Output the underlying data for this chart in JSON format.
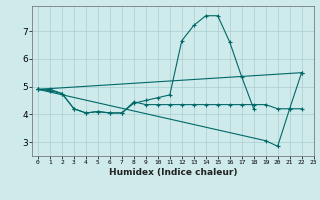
{
  "xlabel": "Humidex (Indice chaleur)",
  "bg_color": "#ceeaea",
  "line_color": "#006868",
  "grid_color": "#aacece",
  "xlim": [
    -0.5,
    23
  ],
  "ylim": [
    2.5,
    7.9
  ],
  "yticks": [
    3,
    4,
    5,
    6,
    7
  ],
  "xticks": [
    0,
    1,
    2,
    3,
    4,
    5,
    6,
    7,
    8,
    9,
    10,
    11,
    12,
    13,
    14,
    15,
    16,
    17,
    18,
    19,
    20,
    21,
    22,
    23
  ],
  "line1_x": [
    0,
    1,
    2,
    3,
    4,
    5,
    6,
    7,
    8,
    9,
    10,
    11,
    12,
    13,
    14,
    15,
    16,
    17,
    18
  ],
  "line1_y": [
    4.9,
    4.9,
    4.75,
    4.2,
    4.05,
    4.1,
    4.05,
    4.05,
    4.4,
    4.5,
    4.6,
    4.7,
    6.65,
    7.2,
    7.55,
    7.55,
    6.6,
    5.35,
    4.2
  ],
  "line2_x": [
    0,
    1,
    2,
    3,
    4,
    5,
    6,
    7,
    8,
    9,
    10,
    11,
    12,
    13,
    14,
    15,
    16,
    17,
    18,
    19,
    20,
    21,
    22
  ],
  "line2_y": [
    4.9,
    4.85,
    4.75,
    4.2,
    4.05,
    4.1,
    4.05,
    4.05,
    4.45,
    4.35,
    4.35,
    4.35,
    4.35,
    4.35,
    4.35,
    4.35,
    4.35,
    4.35,
    4.35,
    4.35,
    4.2,
    4.2,
    4.2
  ],
  "line3_x": [
    0,
    19,
    20,
    21,
    22
  ],
  "line3_y": [
    4.9,
    3.05,
    2.85,
    4.2,
    5.5
  ],
  "line4_x": [
    0,
    22
  ],
  "line4_y": [
    4.9,
    5.5
  ]
}
